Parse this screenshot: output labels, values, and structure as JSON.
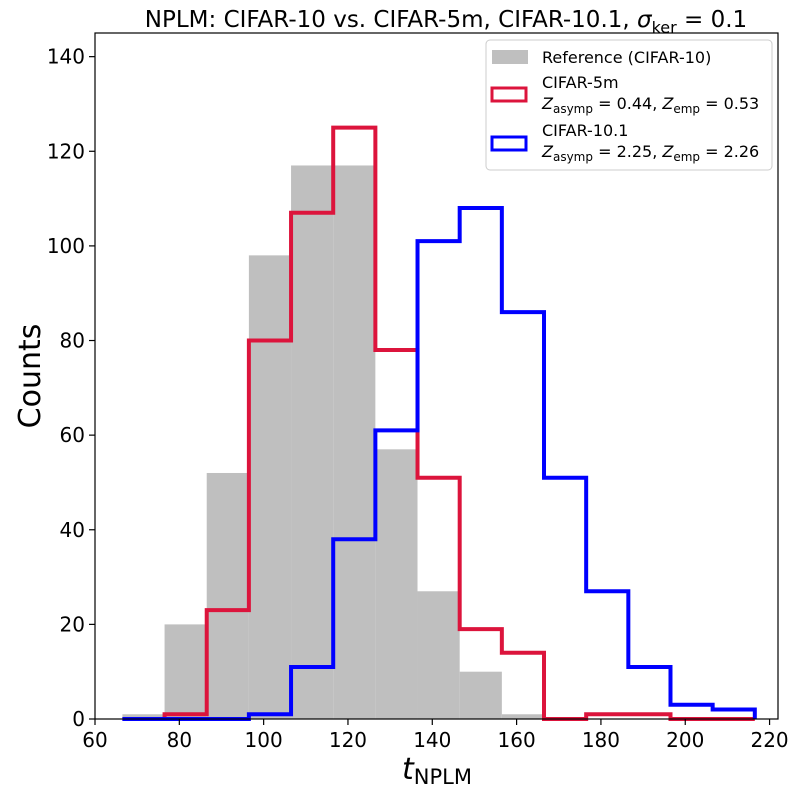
{
  "chart_data": {
    "type": "histogram",
    "title": {
      "prefix": "NPLM: CIFAR-10 vs. CIFAR-5m, CIFAR-10.1, ",
      "sigma": "σ",
      "sigma_sub": "ker",
      "suffix": " = 0.1"
    },
    "xlabel": {
      "main": "t",
      "sub": "NPLM"
    },
    "ylabel": "Counts",
    "xlim": [
      60,
      222
    ],
    "ylim": [
      0,
      145
    ],
    "xticks": [
      60,
      80,
      100,
      120,
      140,
      160,
      180,
      200,
      220
    ],
    "yticks": [
      0,
      20,
      40,
      60,
      80,
      100,
      120,
      140
    ],
    "bin_edges": [
      66.5,
      76.5,
      86.5,
      96.5,
      106.5,
      116.5,
      126.5,
      136.5,
      146.5,
      156.5,
      166.5,
      176.5,
      186.5,
      196.5,
      206.5,
      216.5
    ],
    "series": [
      {
        "name": "Reference (CIFAR-10)",
        "style": "filled",
        "color": "#bfbfbf",
        "values": [
          1,
          20,
          52,
          98,
          117,
          117,
          57,
          27,
          10,
          1,
          0,
          0,
          0,
          0,
          0
        ]
      },
      {
        "name": "CIFAR-5m",
        "style": "step",
        "color": "#dc143c",
        "z_asymp": "0.44",
        "z_emp": "0.53",
        "values": [
          0,
          1,
          23,
          80,
          107,
          125,
          78,
          51,
          19,
          14,
          0,
          1,
          1,
          0,
          0
        ]
      },
      {
        "name": "CIFAR-10.1",
        "style": "step",
        "color": "#0000ff",
        "z_asymp": "2.25",
        "z_emp": "2.26",
        "values": [
          0,
          0,
          0,
          1,
          11,
          38,
          61,
          101,
          108,
          86,
          51,
          27,
          11,
          3,
          2
        ]
      }
    ],
    "legend": {
      "placement": "top-right",
      "z_symbol": "Z",
      "asymp_sub": "asymp",
      "emp_sub": "emp",
      "equals": " = ",
      "comma": ", "
    }
  }
}
